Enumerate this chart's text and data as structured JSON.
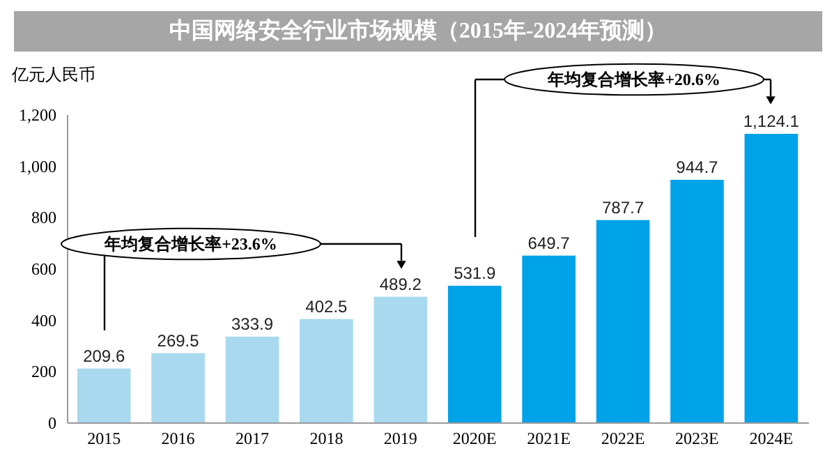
{
  "chart_data": {
    "type": "bar",
    "title": "中国网络安全行业市场规模（2015年-2024年预测）",
    "ylabel": "亿元人民币",
    "categories": [
      "2015",
      "2016",
      "2017",
      "2018",
      "2019",
      "2020E",
      "2021E",
      "2022E",
      "2023E",
      "2024E"
    ],
    "values": [
      209.6,
      269.5,
      333.9,
      402.5,
      489.2,
      531.9,
      649.7,
      787.7,
      944.7,
      1124.1
    ],
    "value_labels": [
      "209.6",
      "269.5",
      "333.9",
      "402.5",
      "489.2",
      "531.9",
      "649.7",
      "787.7",
      "944.7",
      "1,124.1"
    ],
    "colors": [
      "#a8d9ef",
      "#a8d9ef",
      "#a8d9ef",
      "#a8d9ef",
      "#a8d9ef",
      "#00a2e8",
      "#00a2e8",
      "#00a2e8",
      "#00a2e8",
      "#00a2e8"
    ],
    "ylim": [
      0,
      1200
    ],
    "yticks": [
      0,
      200,
      400,
      600,
      800,
      {
        "value": 1000,
        "label": "1,000"
      },
      {
        "value": 1200,
        "label": "1,200"
      }
    ],
    "grid": false,
    "annotations": [
      "年均复合增长率+23.6%",
      "年均复合增长率+20.6%"
    ]
  }
}
